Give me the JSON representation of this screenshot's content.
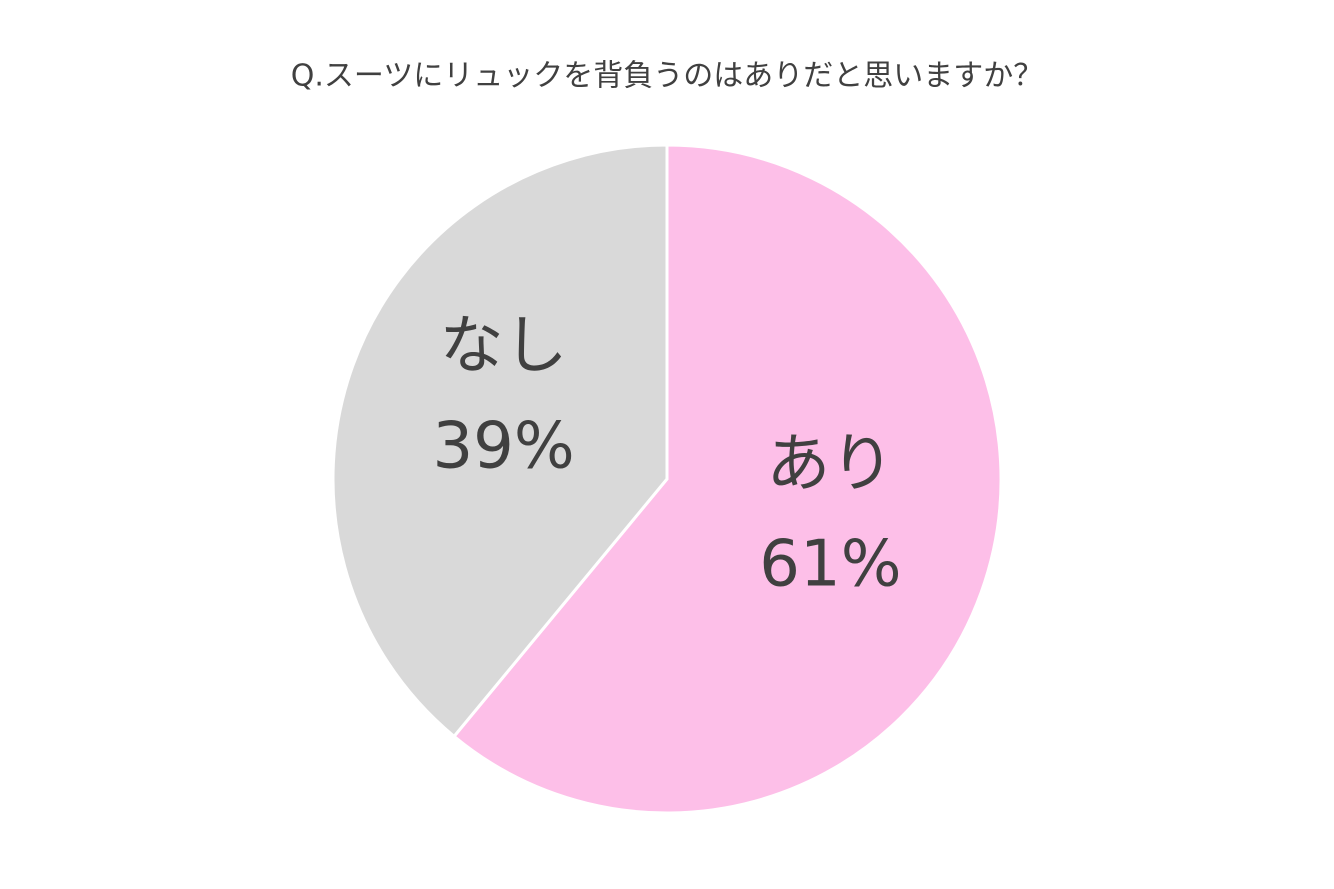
{
  "chart_data": {
    "type": "pie",
    "title": "Q.スーツにリュックを背負うのはありだと思いますか？",
    "categories": [
      "あり",
      "なし"
    ],
    "values": [
      61,
      39
    ],
    "value_labels": [
      "61%",
      "39%"
    ],
    "colors": [
      "#fdbfe8",
      "#d9d9d9"
    ]
  }
}
